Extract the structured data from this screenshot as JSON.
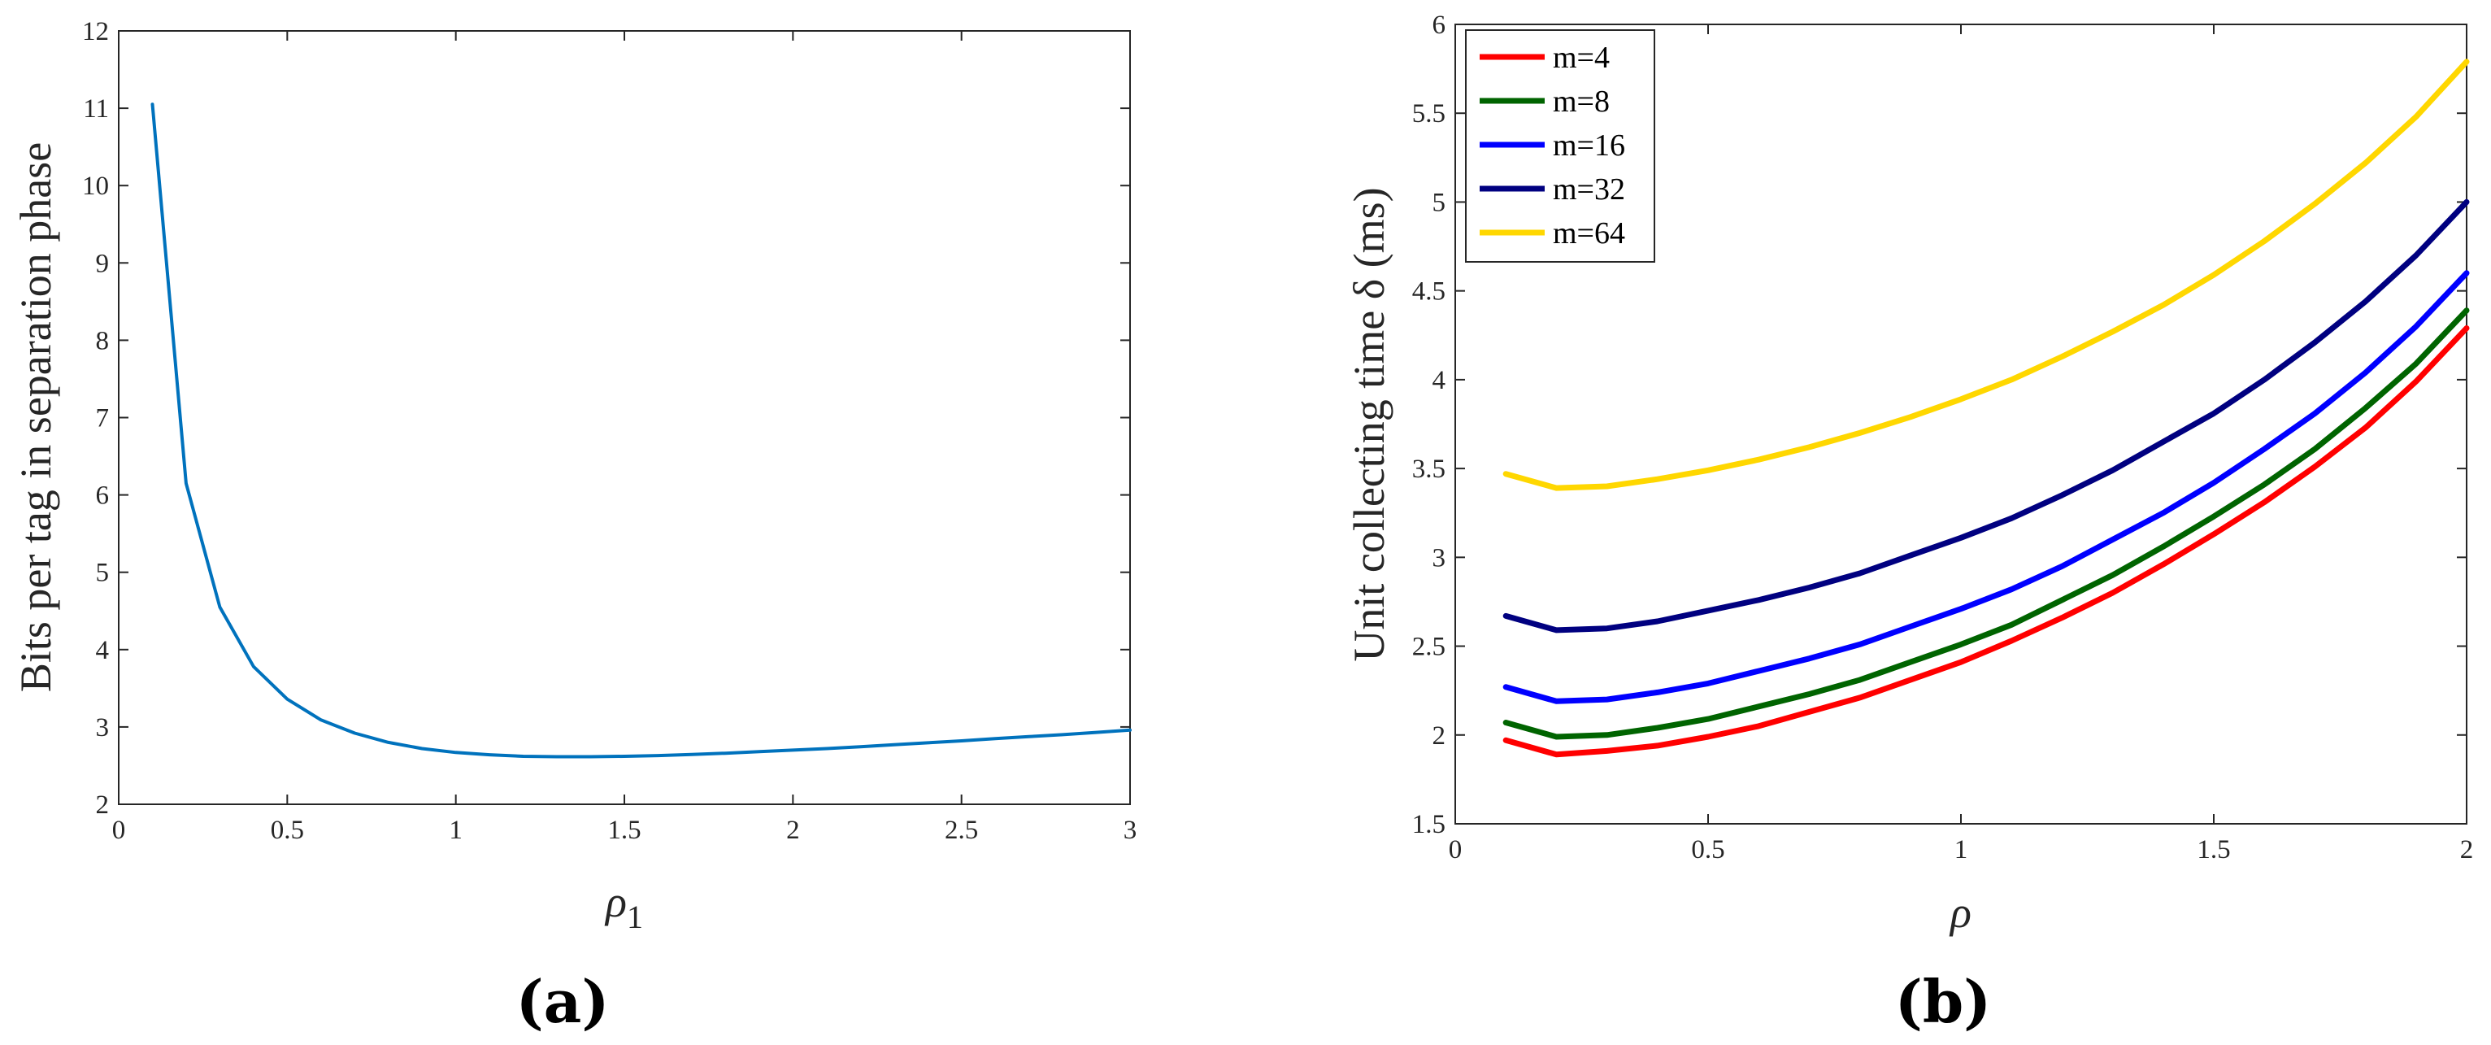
{
  "chart_data": [
    {
      "panel": "a",
      "caption": "(a)",
      "type": "line",
      "xlabel": "ρ",
      "xlabel_sub": "1",
      "ylabel": "Bits per tag in separation phase",
      "xlim": [
        0,
        3
      ],
      "ylim": [
        2,
        12
      ],
      "xticks": [
        "0",
        "0.5",
        "1",
        "1.5",
        "2",
        "2.5",
        "3"
      ],
      "yticks": [
        "2",
        "3",
        "4",
        "5",
        "6",
        "7",
        "8",
        "9",
        "10",
        "11",
        "12"
      ],
      "grid": false,
      "series": [
        {
          "name": "bits",
          "color": "#0072BD",
          "x": [
            0.1,
            0.2,
            0.3,
            0.4,
            0.5,
            0.6,
            0.7,
            0.8,
            0.9,
            1.0,
            1.1,
            1.2,
            1.3,
            1.4,
            1.5,
            1.6,
            1.7,
            1.8,
            1.9,
            2.0,
            2.1,
            2.2,
            2.3,
            2.4,
            2.5,
            2.6,
            2.7,
            2.8,
            2.9,
            3.0
          ],
          "y": [
            11.05,
            6.15,
            4.55,
            3.78,
            3.36,
            3.09,
            2.92,
            2.8,
            2.72,
            2.67,
            2.64,
            2.62,
            2.615,
            2.615,
            2.62,
            2.63,
            2.645,
            2.66,
            2.68,
            2.7,
            2.72,
            2.745,
            2.77,
            2.795,
            2.82,
            2.85,
            2.875,
            2.9,
            2.93,
            2.96
          ]
        }
      ]
    },
    {
      "panel": "b",
      "caption": "(b)",
      "type": "line",
      "xlabel": "ρ",
      "ylabel": "Unit collecting time δ (ms)",
      "xlim": [
        0,
        2
      ],
      "ylim": [
        1.5,
        6
      ],
      "xticks": [
        "0",
        "0.5",
        "1",
        "1.5",
        "2"
      ],
      "yticks": [
        "1.5",
        "2",
        "2.5",
        "3",
        "3.5",
        "4",
        "4.5",
        "5",
        "5.5",
        "6"
      ],
      "grid": false,
      "legend_position": "top-left",
      "x": [
        0.1,
        0.2,
        0.3,
        0.4,
        0.5,
        0.6,
        0.7,
        0.8,
        0.9,
        1.0,
        1.1,
        1.2,
        1.3,
        1.4,
        1.5,
        1.6,
        1.7,
        1.8,
        1.9,
        2.0
      ],
      "series": [
        {
          "name": "m=4",
          "color": "#FF0000",
          "values": [
            1.97,
            1.89,
            1.91,
            1.94,
            1.99,
            2.05,
            2.13,
            2.21,
            2.31,
            2.41,
            2.53,
            2.66,
            2.8,
            2.96,
            3.13,
            3.31,
            3.51,
            3.73,
            3.99,
            4.29
          ]
        },
        {
          "name": "m=8",
          "color": "#006400",
          "values": [
            2.07,
            1.99,
            2.0,
            2.04,
            2.09,
            2.16,
            2.23,
            2.31,
            2.41,
            2.51,
            2.62,
            2.76,
            2.9,
            3.06,
            3.23,
            3.41,
            3.61,
            3.84,
            4.09,
            4.39
          ]
        },
        {
          "name": "m=16",
          "color": "#0000FF",
          "values": [
            2.27,
            2.19,
            2.2,
            2.24,
            2.29,
            2.36,
            2.43,
            2.51,
            2.61,
            2.71,
            2.82,
            2.95,
            3.1,
            3.25,
            3.42,
            3.61,
            3.81,
            4.04,
            4.3,
            4.6
          ]
        },
        {
          "name": "m=32",
          "color": "#000080",
          "values": [
            2.67,
            2.59,
            2.6,
            2.64,
            2.7,
            2.76,
            2.83,
            2.91,
            3.01,
            3.11,
            3.22,
            3.35,
            3.49,
            3.65,
            3.81,
            4.0,
            4.21,
            4.44,
            4.7,
            5.0
          ]
        },
        {
          "name": "m=64",
          "color": "#FFD700",
          "values": [
            3.47,
            3.39,
            3.4,
            3.44,
            3.49,
            3.55,
            3.62,
            3.7,
            3.79,
            3.89,
            4.0,
            4.13,
            4.27,
            4.42,
            4.59,
            4.78,
            4.99,
            5.22,
            5.48,
            5.79
          ]
        }
      ]
    }
  ]
}
